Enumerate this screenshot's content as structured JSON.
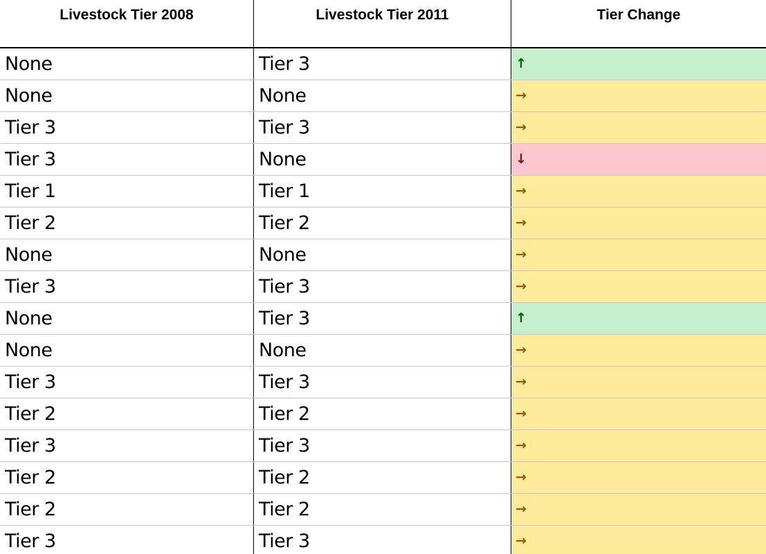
{
  "table": {
    "headers": [
      "Livestock Tier 2008",
      "Livestock Tier 2011",
      "Tier Change"
    ],
    "status_colors": {
      "up": {
        "bg": "#c6efce",
        "fg": "#006100"
      },
      "same": {
        "bg": "#ffeb9c",
        "fg": "#9c5700"
      },
      "down": {
        "bg": "#ffc7ce",
        "fg": "#9c0006"
      }
    },
    "rows": [
      {
        "tier_2008": "None",
        "tier_2011": "Tier 3",
        "change": "up",
        "arrow": "↑"
      },
      {
        "tier_2008": "None",
        "tier_2011": "None",
        "change": "same",
        "arrow": "→"
      },
      {
        "tier_2008": "Tier 3",
        "tier_2011": "Tier 3",
        "change": "same",
        "arrow": "→"
      },
      {
        "tier_2008": "Tier 3",
        "tier_2011": "None",
        "change": "down",
        "arrow": "↓"
      },
      {
        "tier_2008": "Tier 1",
        "tier_2011": "Tier 1",
        "change": "same",
        "arrow": "→"
      },
      {
        "tier_2008": "Tier 2",
        "tier_2011": "Tier 2",
        "change": "same",
        "arrow": "→"
      },
      {
        "tier_2008": "None",
        "tier_2011": "None",
        "change": "same",
        "arrow": "→"
      },
      {
        "tier_2008": "Tier 3",
        "tier_2011": "Tier 3",
        "change": "same",
        "arrow": "→"
      },
      {
        "tier_2008": "None",
        "tier_2011": "Tier 3",
        "change": "up",
        "arrow": "↑"
      },
      {
        "tier_2008": "None",
        "tier_2011": "None",
        "change": "same",
        "arrow": "→"
      },
      {
        "tier_2008": "Tier 3",
        "tier_2011": "Tier 3",
        "change": "same",
        "arrow": "→"
      },
      {
        "tier_2008": "Tier 2",
        "tier_2011": "Tier 2",
        "change": "same",
        "arrow": "→"
      },
      {
        "tier_2008": "Tier 3",
        "tier_2011": "Tier 3",
        "change": "same",
        "arrow": "→"
      },
      {
        "tier_2008": "Tier 2",
        "tier_2011": "Tier 2",
        "change": "same",
        "arrow": "→"
      },
      {
        "tier_2008": "Tier 2",
        "tier_2011": "Tier 2",
        "change": "same",
        "arrow": "→"
      },
      {
        "tier_2008": "Tier 3",
        "tier_2011": "Tier 3",
        "change": "same",
        "arrow": "→"
      }
    ]
  }
}
